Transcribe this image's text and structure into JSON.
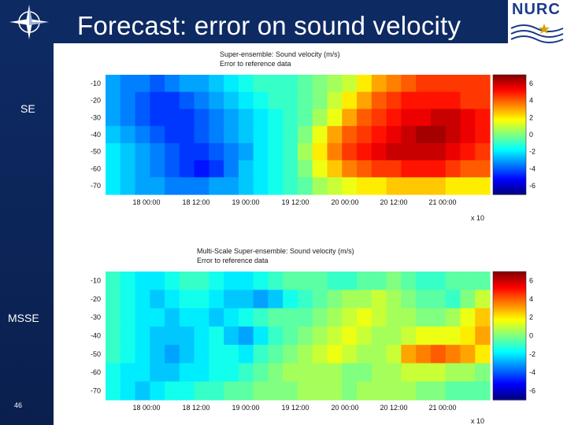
{
  "slide": {
    "title": "Forecast: error on sound velocity",
    "logo_text": "NURC",
    "page_number": "46",
    "label_se": "SE",
    "label_msse": "MSSE",
    "colors": {
      "bar": "#0e2a63",
      "title_text": "#ffffff",
      "logo_text": "#1b3b8a"
    }
  },
  "chart_data": [
    {
      "type": "heatmap",
      "title": "Super-ensemble: Sound velocity (m/s)",
      "subtitle": "Error to reference data",
      "xtick_labels": [
        "18 00:00",
        "18 12:00",
        "19 00:00",
        "19 12:00",
        "20 00:00",
        "20 12:00",
        "21 00:00"
      ],
      "ytick_labels": [
        "-10",
        "-20",
        "-30",
        "-40",
        "-50",
        "-60",
        "-70"
      ],
      "x_exponent_label": "x 10",
      "colorbar_ticks": [
        "6",
        "4",
        "2",
        "0",
        "-2",
        "-4",
        "-6"
      ],
      "clim": [
        -7,
        7
      ],
      "values": [
        [
          -3,
          -3.5,
          -3.5,
          -4,
          -3.5,
          -3,
          -3,
          -2.5,
          -2,
          -1.5,
          -1,
          -1,
          -1,
          -0.5,
          0,
          0.5,
          1,
          2,
          3,
          3.5,
          4,
          4.5,
          4.5,
          4.5,
          4.5,
          4.5
        ],
        [
          -3,
          -3.5,
          -4,
          -4.5,
          -4.5,
          -4,
          -3.5,
          -3,
          -2.5,
          -2,
          -1.5,
          -1,
          -1,
          -0.5,
          0,
          1,
          2,
          3,
          4,
          4.5,
          5,
          5,
          5,
          5,
          4.5,
          4.5
        ],
        [
          -3,
          -3.5,
          -4,
          -4.5,
          -4.5,
          -4.5,
          -4,
          -3.5,
          -3,
          -2.5,
          -2,
          -1.5,
          -1,
          -0.5,
          0.5,
          1.5,
          3,
          4,
          4.5,
          5,
          5.5,
          5.5,
          6,
          6,
          5.5,
          5
        ],
        [
          -2.5,
          -3,
          -3.5,
          -4,
          -4.5,
          -4.5,
          -4,
          -3.5,
          -3,
          -2.5,
          -2,
          -1.5,
          -1,
          0,
          1.5,
          3,
          4,
          4.5,
          5,
          5.5,
          6,
          6.5,
          6.5,
          6,
          5.5,
          5
        ],
        [
          -2,
          -2.5,
          -3,
          -3.5,
          -4,
          -4.5,
          -4.5,
          -4,
          -3.5,
          -3,
          -2,
          -1.5,
          -1,
          0.5,
          2,
          3.5,
          4.5,
          5,
          5.5,
          6,
          6,
          6,
          6,
          5.5,
          5,
          4.5
        ],
        [
          -2,
          -2.5,
          -3,
          -3.5,
          -4,
          -4.5,
          -5,
          -4.5,
          -3.5,
          -2.5,
          -2,
          -1.5,
          -1,
          0,
          1.5,
          2.5,
          3.5,
          4,
          4.5,
          4.5,
          5,
          5,
          5,
          4.5,
          4,
          4
        ],
        [
          -2,
          -2.5,
          -3,
          -3,
          -3.5,
          -3.5,
          -3.5,
          -3,
          -3,
          -2.5,
          -2,
          -1.5,
          -1,
          -0.5,
          0.5,
          1,
          1.5,
          2,
          2,
          2.5,
          2.5,
          2.5,
          2.5,
          2,
          2,
          2
        ]
      ]
    },
    {
      "type": "heatmap",
      "title": "Multi-Scale Super-ensemble: Sound velocity (m/s)",
      "subtitle": "Error to reference data",
      "xtick_labels": [
        "18 00:00",
        "18 12:00",
        "19 00:00",
        "19 12:00",
        "20 00:00",
        "20 12:00",
        "21 00:00"
      ],
      "ytick_labels": [
        "-10",
        "-20",
        "-30",
        "-40",
        "-50",
        "-60",
        "-70"
      ],
      "x_exponent_label": "x 10",
      "colorbar_ticks": [
        "6",
        "4",
        "2",
        "0",
        "-2",
        "-4",
        "-6"
      ],
      "clim": [
        -7,
        7
      ],
      "values": [
        [
          -1,
          -1.5,
          -2,
          -2,
          -1.5,
          -1,
          -1,
          -1.5,
          -2,
          -2,
          -1.5,
          -1,
          -0.5,
          -0.5,
          -0.5,
          -1,
          -1,
          -0.5,
          -0.5,
          0,
          -0.5,
          -1,
          -1,
          -0.5,
          -0.5,
          -0.5
        ],
        [
          -1,
          -1.5,
          -2,
          -2.5,
          -2,
          -1.5,
          -1.5,
          -2,
          -2.5,
          -2.5,
          -3,
          -2.5,
          -1.5,
          -1,
          -0.5,
          0,
          0.5,
          0.5,
          1,
          0.5,
          0,
          -0.5,
          -0.5,
          -1,
          0,
          1
        ],
        [
          -1,
          -1.5,
          -2,
          -2,
          -2.5,
          -2,
          -2,
          -2.5,
          -2,
          -1.5,
          -1,
          -0.5,
          -0.5,
          -0.5,
          0,
          0.5,
          1,
          1.5,
          1,
          0.5,
          0.5,
          0,
          0,
          0.5,
          1.5,
          2.5
        ],
        [
          -1,
          -1.5,
          -2,
          -2.5,
          -2.5,
          -2.5,
          -2,
          -1.5,
          -2.5,
          -3,
          -2,
          -1,
          -0.5,
          0,
          0.5,
          1,
          1.5,
          1,
          0.5,
          0.5,
          1,
          1.5,
          1.5,
          1.5,
          2,
          3
        ],
        [
          -1,
          -1.5,
          -2,
          -2.5,
          -3,
          -2.5,
          -2,
          -1.5,
          -1.5,
          -2,
          -1,
          -0.5,
          0,
          0.5,
          1,
          1.5,
          1,
          0.5,
          0.5,
          1,
          3,
          3.5,
          4,
          3.5,
          3,
          2
        ],
        [
          -1.5,
          -2,
          -2,
          -2.5,
          -2.5,
          -2,
          -2,
          -1.5,
          -1.5,
          -1,
          -0.5,
          0,
          0.5,
          0.5,
          0.5,
          0.5,
          0,
          0,
          0.5,
          0.5,
          1,
          1,
          1,
          0.5,
          0.5,
          0
        ],
        [
          -1.5,
          -2,
          -2.5,
          -2,
          -1.5,
          -1.5,
          -1,
          -1,
          -0.5,
          -0.5,
          0,
          0,
          0,
          0.5,
          0.5,
          0.5,
          0,
          0.5,
          0.5,
          0.5,
          0.5,
          0,
          0,
          -0.5,
          -0.5,
          -0.5
        ]
      ]
    }
  ]
}
